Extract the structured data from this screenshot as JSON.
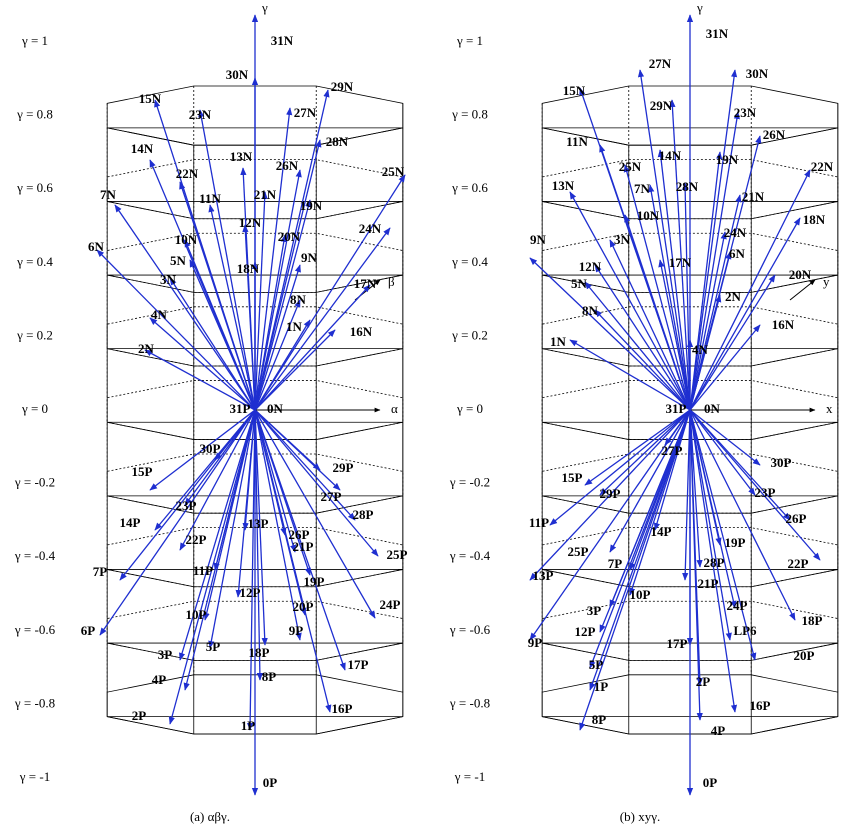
{
  "gamma_labels": [
    "γ = 1",
    "γ = 0.8",
    "γ = 0.6",
    "γ = 0.4",
    "γ = 0.2",
    "γ = 0",
    "γ = -0.2",
    "γ = -0.4",
    "γ = -0.6",
    "γ = -0.8",
    "γ = -1"
  ],
  "panels": [
    {
      "caption": "(a) αβγ.",
      "axis_vertical": "γ",
      "axis_horizontal": "α",
      "axis_depth": "β",
      "vectors": [
        "31N",
        "30N",
        "29N",
        "15N",
        "23N",
        "27N",
        "28N",
        "14N",
        "13N",
        "26N",
        "22N",
        "25N",
        "21N",
        "7N",
        "11N",
        "19N",
        "12N",
        "20N",
        "10N",
        "24N",
        "6N",
        "5N",
        "18N",
        "9N",
        "3N",
        "17N",
        "8N",
        "4N",
        "2N",
        "16N",
        "1N",
        "0N",
        "31P",
        "30P",
        "29P",
        "15P",
        "27P",
        "23P",
        "28P",
        "14P",
        "13P",
        "26P",
        "22P",
        "21P",
        "25P",
        "11P",
        "19P",
        "7P",
        "12P",
        "20P",
        "10P",
        "24P",
        "9P",
        "6P",
        "5P",
        "18P",
        "3P",
        "17P",
        "4P",
        "8P",
        "16P",
        "2P",
        "1P",
        "0P"
      ]
    },
    {
      "caption": "(b) xyγ.",
      "axis_vertical": "γ",
      "axis_horizontal": "x",
      "axis_depth": "y",
      "vectors": [
        "31N",
        "27N",
        "30N",
        "15N",
        "29N",
        "23N",
        "26N",
        "11N",
        "14N",
        "25N",
        "19N",
        "22N",
        "13N",
        "7N",
        "28N",
        "21N",
        "10N",
        "18N",
        "24N",
        "9N",
        "3N",
        "6N",
        "12N",
        "17N",
        "20N",
        "5N",
        "2N",
        "8N",
        "16N",
        "4N",
        "1N",
        "0N",
        "31P",
        "27P",
        "30P",
        "15P",
        "29P",
        "23P",
        "26P",
        "11P",
        "14P",
        "25P",
        "19P",
        "22P",
        "7P",
        "28P",
        "13P",
        "10P",
        "21P",
        "24P",
        "18P",
        "3P",
        "12P",
        "LP6",
        "17P",
        "20P",
        "9P",
        "5P",
        "2P",
        "1P",
        "16P",
        "8P",
        "4P",
        "0P"
      ]
    }
  ]
}
